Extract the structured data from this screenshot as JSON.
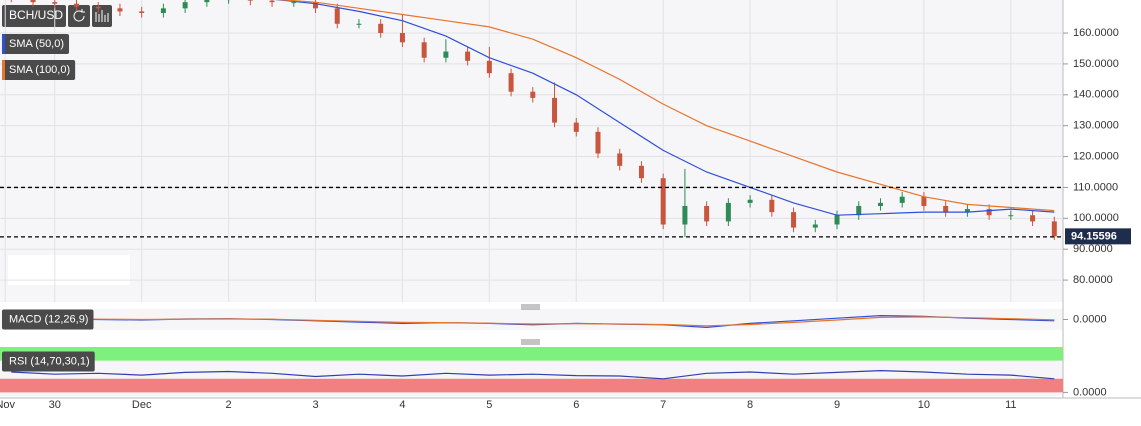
{
  "chart_data": [
    {
      "type": "candlestick",
      "title": "BCH/USD",
      "x": [
        -0.5,
        -0.25,
        0,
        0.25,
        0.5,
        0.75,
        1,
        1.25,
        1.5,
        1.75,
        2,
        2.25,
        2.5,
        2.75,
        3,
        3.25,
        3.5,
        3.75,
        4,
        4.25,
        4.5,
        4.75,
        5,
        5.25,
        5.5,
        5.75,
        6,
        6.25,
        6.5,
        6.75,
        7,
        7.25,
        7.5,
        7.75,
        8,
        8.25,
        8.5,
        8.75,
        9,
        9.25,
        9.5,
        9.75,
        10,
        10.25,
        10.5,
        10.75,
        11,
        11.25,
        11.5
      ],
      "open": [
        172.5,
        171.5,
        170,
        169.5,
        168.5,
        168,
        167,
        166.5,
        168,
        170,
        171,
        171,
        170.5,
        170,
        170,
        168,
        163,
        163,
        160,
        157,
        152,
        154,
        151,
        147,
        141,
        139,
        131,
        128,
        121,
        117,
        113,
        98,
        104,
        99,
        105,
        106,
        102,
        97,
        98,
        101,
        104,
        105,
        107,
        104,
        102,
        103,
        101,
        101,
        99
      ],
      "high": [
        174,
        173,
        171.5,
        171,
        170,
        169.5,
        168.5,
        169.5,
        171.5,
        172.5,
        172.5,
        172.5,
        172,
        171.5,
        171.5,
        169.5,
        164.5,
        164.5,
        166,
        158.5,
        158,
        155.5,
        155.5,
        148.5,
        142.5,
        144,
        132.5,
        129.5,
        122.5,
        118.5,
        114.5,
        116,
        105.5,
        106.5,
        107.5,
        107.5,
        103.5,
        99.5,
        102.5,
        105.5,
        106.5,
        108.5,
        108.5,
        105.5,
        104.5,
        104.5,
        102.5,
        102.5,
        100.5
      ],
      "low": [
        170,
        168.5,
        168,
        167,
        166.5,
        165.5,
        165,
        165,
        166.5,
        168.5,
        169.5,
        169,
        168.5,
        168.5,
        166.5,
        161.5,
        161.5,
        158.5,
        155.5,
        150.5,
        150.5,
        149.5,
        145.5,
        139.5,
        137.5,
        129.5,
        126.5,
        119.5,
        115.5,
        111.5,
        96.5,
        94,
        97.5,
        97.5,
        103.5,
        100.5,
        95.5,
        95.5,
        96.5,
        99.5,
        102.5,
        103.5,
        102.5,
        100.5,
        100.5,
        99.5,
        99.5,
        97.5,
        93
      ],
      "close": [
        171.5,
        170,
        169.5,
        168.5,
        168,
        167,
        166.5,
        168,
        170,
        171,
        171,
        170.5,
        170,
        170,
        168,
        163,
        163,
        160,
        157,
        152,
        154,
        151,
        147,
        141,
        139,
        131,
        128,
        121,
        117,
        113,
        98,
        104,
        99,
        105,
        106,
        102,
        97,
        98,
        101,
        104,
        105,
        107,
        104,
        102,
        103,
        101,
        101,
        99,
        94.15596
      ],
      "up_color": "#2e8b57",
      "down_color": "#c8553d",
      "series": [
        {
          "name": "SMA (50,0)",
          "color": "#2f4fd8",
          "x": [
            2.5,
            3,
            3.5,
            4,
            4.5,
            5,
            5.5,
            6,
            6.5,
            7,
            7.5,
            8,
            8.5,
            9,
            9.5,
            10,
            10.5,
            11,
            11.5
          ],
          "values": [
            171,
            169.5,
            167,
            164,
            159,
            152,
            147,
            140,
            131,
            122,
            115,
            110,
            105,
            101,
            101.5,
            102,
            102,
            103,
            102
          ]
        },
        {
          "name": "SMA (100,0)",
          "color": "#e8742c",
          "x": [
            2.5,
            3,
            3.5,
            4,
            4.5,
            5,
            5.5,
            6,
            6.5,
            7,
            7.5,
            8,
            8.5,
            9,
            9.5,
            10,
            10.5,
            11,
            11.5
          ],
          "values": [
            171,
            170,
            168,
            166,
            164,
            162,
            158,
            152,
            145,
            137,
            130,
            125,
            120,
            115,
            111,
            107,
            104.5,
            103.5,
            102.5
          ]
        }
      ],
      "levels": [
        110,
        94
      ],
      "xlim": [
        -0.63,
        11.6
      ],
      "xticks": [
        {
          "value": -0.57,
          "label": "Nov"
        },
        {
          "value": 0,
          "label": "30"
        },
        {
          "value": 1,
          "label": "Dec"
        },
        {
          "value": 2,
          "label": "2"
        },
        {
          "value": 3,
          "label": "3"
        },
        {
          "value": 4,
          "label": "4"
        },
        {
          "value": 5,
          "label": "5"
        },
        {
          "value": 6,
          "label": "6"
        },
        {
          "value": 7,
          "label": "7"
        },
        {
          "value": 8,
          "label": "8"
        },
        {
          "value": 9,
          "label": "9"
        },
        {
          "value": 10,
          "label": "10"
        },
        {
          "value": 11,
          "label": "11"
        }
      ],
      "ylim": [
        72.9,
        170.7
      ],
      "yticks": [
        {
          "value": 80,
          "label": "80.0000"
        },
        {
          "value": 90,
          "label": "90.0000"
        },
        {
          "value": 100,
          "label": "100.0000"
        },
        {
          "value": 110,
          "label": "110.0000"
        },
        {
          "value": 120,
          "label": "120.0000"
        },
        {
          "value": 130,
          "label": "130.0000"
        },
        {
          "value": 140,
          "label": "140.0000"
        },
        {
          "value": 150,
          "label": "150.0000"
        },
        {
          "value": 160,
          "label": "160.0000"
        }
      ]
    },
    {
      "type": "line",
      "title": "MACD (12,26,9)",
      "x": [
        -0.5,
        0,
        0.5,
        1,
        1.5,
        2,
        2.5,
        3,
        3.5,
        4,
        4.5,
        5,
        5.5,
        6,
        6.5,
        7,
        7.5,
        8,
        8.5,
        9,
        9.5,
        10,
        10.5,
        11,
        11.5
      ],
      "series": [
        {
          "color": "#2f4fd8",
          "values": [
            0.5,
            0.3,
            0,
            -0.2,
            0.2,
            0.3,
            0,
            -0.5,
            -1,
            -1.5,
            -1.2,
            -1.5,
            -2,
            -1.5,
            -1.8,
            -2,
            -3,
            -1.5,
            -0.5,
            0.5,
            1.5,
            1.2,
            0.5,
            0,
            -0.5
          ]
        },
        {
          "color": "#e8742c",
          "values": [
            0.4,
            0.3,
            0.1,
            0,
            0.1,
            0.2,
            0.1,
            -0.3,
            -0.7,
            -1.1,
            -1.2,
            -1.4,
            -1.7,
            -1.6,
            -1.7,
            -1.9,
            -2.4,
            -1.9,
            -1.1,
            -0.2,
            0.8,
            1,
            0.7,
            0.3,
            -0.1
          ]
        }
      ],
      "ylim": [
        -4,
        4
      ],
      "yticks": [
        {
          "value": 0,
          "label": "0.0000"
        }
      ]
    },
    {
      "type": "line",
      "title": "RSI (14,70,30,1)",
      "x": [
        -0.5,
        0,
        0.5,
        1,
        1.5,
        2,
        2.5,
        3,
        3.5,
        4,
        4.5,
        5,
        5.5,
        6,
        6.5,
        7,
        7.5,
        8,
        8.5,
        9,
        9.5,
        10,
        10.5,
        11,
        11.5
      ],
      "series": [
        {
          "color": "#2f3fb0",
          "values": [
            45,
            40,
            42,
            38,
            44,
            46,
            42,
            35,
            40,
            36,
            42,
            38,
            40,
            37,
            36,
            30,
            42,
            45,
            40,
            44,
            48,
            45,
            40,
            38,
            30
          ]
        }
      ],
      "bands": [
        {
          "from": 70,
          "to": 100,
          "color": "#7ef07e"
        },
        {
          "from": 0,
          "to": 30,
          "color": "#f28080"
        }
      ],
      "ylim": [
        -8,
        100
      ],
      "yticks": [
        {
          "value": 0,
          "label": "0.0000"
        }
      ]
    }
  ]
}
